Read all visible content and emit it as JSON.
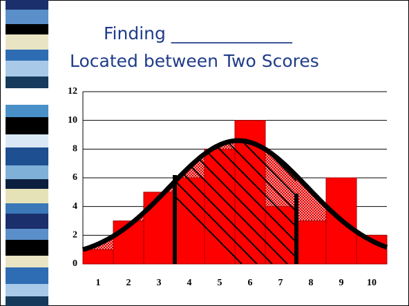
{
  "chart_data": {
    "type": "bar",
    "title": "Finding ______________",
    "subtitle": "Located between Two Scores",
    "categories": [
      "1",
      "2",
      "3",
      "4",
      "5",
      "6",
      "7",
      "8",
      "9",
      "10"
    ],
    "values": [
      1,
      3,
      5,
      6,
      8,
      10,
      4,
      3,
      6,
      2
    ],
    "color": "#ff0000",
    "ylim": [
      0,
      12
    ],
    "yticks": [
      0,
      2,
      4,
      6,
      8,
      10,
      12
    ],
    "grid": true
  }
}
